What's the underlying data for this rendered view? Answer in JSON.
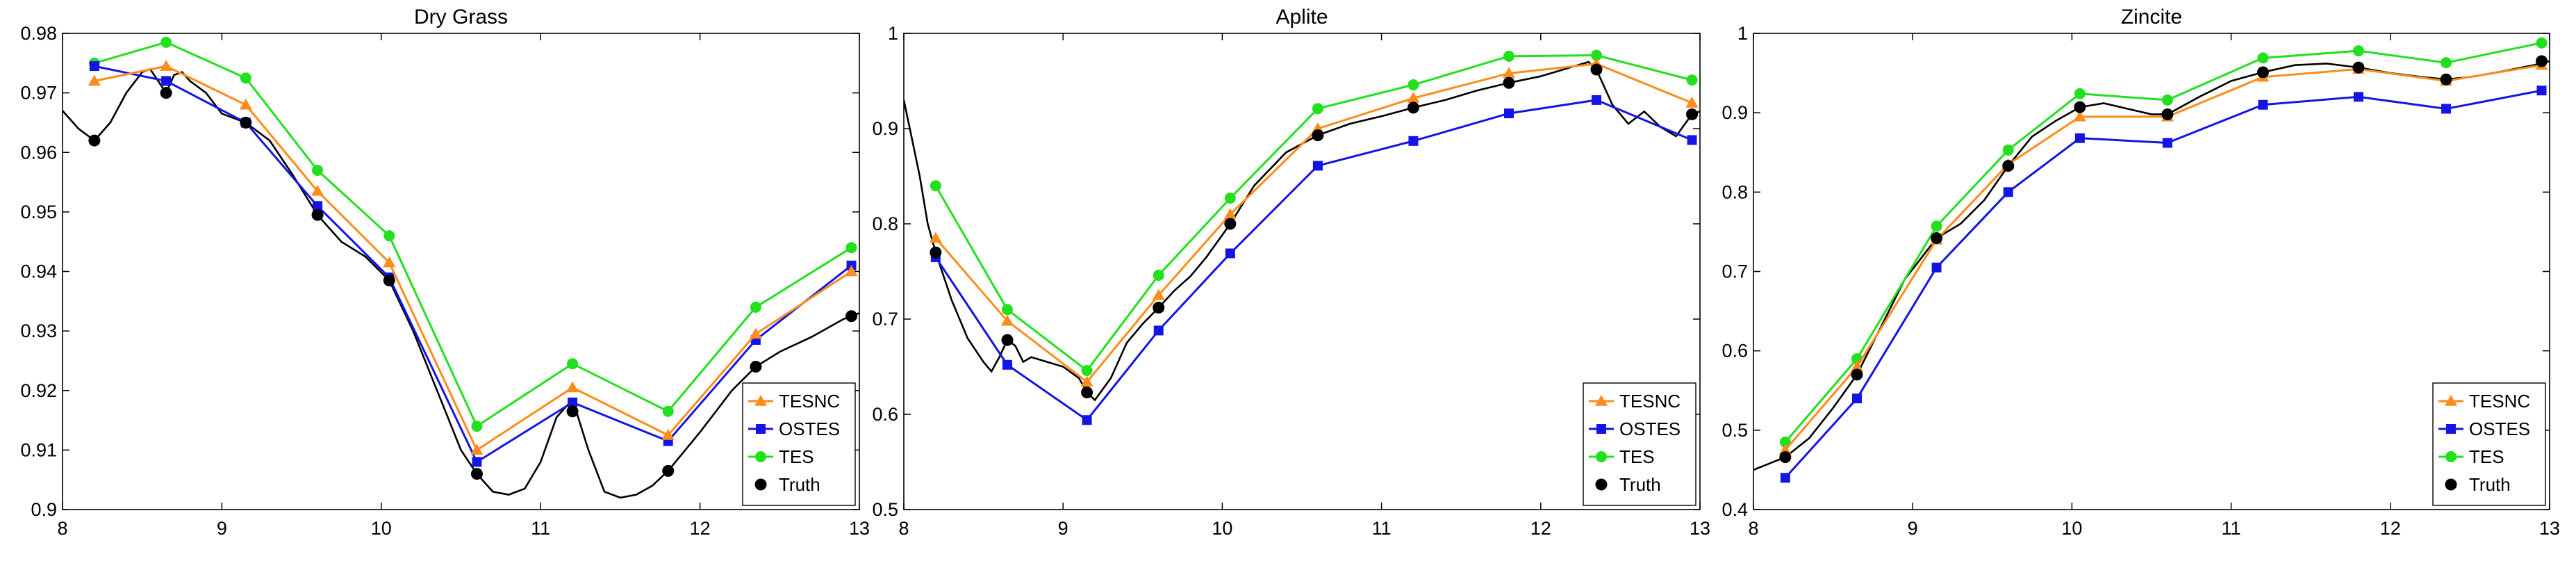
{
  "colors": {
    "TESNC": "#ff8c1a",
    "OSTES": "#1414e6",
    "TES": "#22e01e",
    "Truth": "#000000",
    "axes": "#000000",
    "background": "#ffffff"
  },
  "chart_data": [
    {
      "type": "line",
      "title": "Dry Grass",
      "xlabel": "",
      "ylabel": "",
      "xlim": [
        8,
        13
      ],
      "ylim": [
        0.9,
        0.98
      ],
      "xticks": [
        8,
        9,
        10,
        11,
        12,
        13
      ],
      "yticks": [
        0.9,
        0.91,
        0.92,
        0.93,
        0.94,
        0.95,
        0.96,
        0.97,
        0.98
      ],
      "x_tick_labels": [
        "8",
        "9",
        "10",
        "11",
        "12",
        "13"
      ],
      "y_tick_labels": [
        "0.9",
        "0.91",
        "0.92",
        "0.93",
        "0.94",
        "0.95",
        "0.96",
        "0.97",
        "0.98"
      ],
      "legend_position": "bottom-right",
      "grid": false,
      "x": [
        8.2,
        8.65,
        9.15,
        9.6,
        10.05,
        10.6,
        11.2,
        11.8,
        12.35,
        12.95
      ],
      "series": [
        {
          "name": "TESNC",
          "marker": "triangle",
          "values": [
            0.972,
            0.9745,
            0.968,
            0.9535,
            0.9415,
            0.91,
            0.9205,
            0.9125,
            0.9295,
            0.94
          ]
        },
        {
          "name": "OSTES",
          "marker": "square",
          "values": [
            0.9745,
            0.972,
            0.965,
            0.951,
            0.939,
            0.908,
            0.918,
            0.9115,
            0.9285,
            0.941
          ]
        },
        {
          "name": "TES",
          "marker": "circle",
          "values": [
            0.975,
            0.9785,
            0.9725,
            0.957,
            0.946,
            0.914,
            0.9245,
            0.9165,
            0.934,
            0.944
          ]
        },
        {
          "name": "Truth",
          "marker": "dot",
          "values": [
            0.962,
            0.97,
            0.965,
            0.9495,
            0.9385,
            0.906,
            0.9165,
            0.9065,
            0.924,
            0.9325
          ]
        }
      ],
      "truth_curve": {
        "x": [
          8.0,
          8.1,
          8.2,
          8.3,
          8.4,
          8.5,
          8.55,
          8.6,
          8.65,
          8.7,
          8.75,
          8.8,
          8.9,
          9.0,
          9.15,
          9.3,
          9.45,
          9.6,
          9.75,
          9.9,
          10.05,
          10.2,
          10.35,
          10.5,
          10.6,
          10.7,
          10.8,
          10.9,
          11.0,
          11.1,
          11.2,
          11.3,
          11.4,
          11.5,
          11.6,
          11.7,
          11.8,
          12.0,
          12.2,
          12.35,
          12.5,
          12.7,
          12.9,
          13.0
        ],
        "y": [
          0.967,
          0.964,
          0.962,
          0.965,
          0.97,
          0.9735,
          0.974,
          0.972,
          0.97,
          0.973,
          0.9735,
          0.972,
          0.97,
          0.9665,
          0.965,
          0.962,
          0.956,
          0.9495,
          0.945,
          0.9425,
          0.9385,
          0.93,
          0.92,
          0.91,
          0.906,
          0.903,
          0.9025,
          0.9035,
          0.908,
          0.9155,
          0.9185,
          0.91,
          0.903,
          0.902,
          0.9025,
          0.904,
          0.9065,
          0.913,
          0.92,
          0.924,
          0.9265,
          0.929,
          0.932,
          0.933
        ]
      }
    },
    {
      "type": "line",
      "title": "Aplite",
      "xlabel": "",
      "ylabel": "",
      "xlim": [
        8,
        13
      ],
      "ylim": [
        0.5,
        1.0
      ],
      "xticks": [
        8,
        9,
        10,
        11,
        12,
        13
      ],
      "yticks": [
        0.5,
        0.6,
        0.7,
        0.8,
        0.9,
        1.0
      ],
      "x_tick_labels": [
        "8",
        "9",
        "10",
        "11",
        "12",
        "13"
      ],
      "y_tick_labels": [
        "0.5",
        "0.6",
        "0.7",
        "0.8",
        "0.9",
        "1"
      ],
      "legend_position": "bottom-right",
      "grid": false,
      "x": [
        8.2,
        8.65,
        9.15,
        9.6,
        10.05,
        10.6,
        11.2,
        11.8,
        12.35,
        12.95
      ],
      "series": [
        {
          "name": "TESNC",
          "marker": "triangle",
          "values": [
            0.785,
            0.698,
            0.634,
            0.725,
            0.81,
            0.9,
            0.932,
            0.958,
            0.968,
            0.927
          ]
        },
        {
          "name": "OSTES",
          "marker": "square",
          "values": [
            0.765,
            0.652,
            0.594,
            0.688,
            0.769,
            0.861,
            0.887,
            0.916,
            0.93,
            0.888
          ]
        },
        {
          "name": "TES",
          "marker": "circle",
          "values": [
            0.84,
            0.71,
            0.646,
            0.746,
            0.827,
            0.921,
            0.946,
            0.976,
            0.977,
            0.951
          ]
        },
        {
          "name": "Truth",
          "marker": "dot",
          "values": [
            0.77,
            0.678,
            0.623,
            0.712,
            0.8,
            0.893,
            0.922,
            0.948,
            0.962,
            0.915
          ]
        }
      ],
      "truth_curve": {
        "x": [
          8.0,
          8.05,
          8.1,
          8.15,
          8.2,
          8.3,
          8.4,
          8.5,
          8.55,
          8.6,
          8.65,
          8.7,
          8.75,
          8.8,
          8.9,
          9.0,
          9.1,
          9.15,
          9.2,
          9.3,
          9.4,
          9.5,
          9.6,
          9.7,
          9.8,
          9.9,
          10.05,
          10.2,
          10.4,
          10.6,
          10.8,
          11.0,
          11.2,
          11.4,
          11.6,
          11.8,
          12.0,
          12.2,
          12.3,
          12.35,
          12.45,
          12.55,
          12.65,
          12.75,
          12.85,
          12.95,
          13.0
        ],
        "y": [
          0.93,
          0.89,
          0.85,
          0.8,
          0.77,
          0.72,
          0.68,
          0.655,
          0.645,
          0.66,
          0.678,
          0.672,
          0.655,
          0.66,
          0.655,
          0.65,
          0.638,
          0.623,
          0.615,
          0.638,
          0.675,
          0.695,
          0.712,
          0.73,
          0.745,
          0.765,
          0.8,
          0.84,
          0.875,
          0.893,
          0.905,
          0.913,
          0.922,
          0.93,
          0.94,
          0.948,
          0.955,
          0.965,
          0.97,
          0.962,
          0.925,
          0.905,
          0.918,
          0.902,
          0.892,
          0.915,
          0.918
        ]
      }
    },
    {
      "type": "line",
      "title": "Zincite",
      "xlabel": "",
      "ylabel": "",
      "xlim": [
        8,
        13
      ],
      "ylim": [
        0.4,
        1.0
      ],
      "xticks": [
        8,
        9,
        10,
        11,
        12,
        13
      ],
      "yticks": [
        0.4,
        0.5,
        0.6,
        0.7,
        0.8,
        0.9,
        1.0
      ],
      "x_tick_labels": [
        "8",
        "9",
        "10",
        "11",
        "12",
        "13"
      ],
      "y_tick_labels": [
        "0.4",
        "0.5",
        "0.6",
        "0.7",
        "0.8",
        "0.9",
        "1"
      ],
      "legend_position": "bottom-right",
      "grid": false,
      "x": [
        8.2,
        8.65,
        9.15,
        9.6,
        10.05,
        10.6,
        11.2,
        11.8,
        12.35,
        12.95
      ],
      "series": [
        {
          "name": "TESNC",
          "marker": "triangle",
          "values": [
            0.475,
            0.58,
            0.74,
            0.835,
            0.895,
            0.895,
            0.945,
            0.955,
            0.94,
            0.96
          ]
        },
        {
          "name": "OSTES",
          "marker": "square",
          "values": [
            0.44,
            0.54,
            0.705,
            0.8,
            0.868,
            0.862,
            0.91,
            0.92,
            0.905,
            0.928
          ]
        },
        {
          "name": "TES",
          "marker": "circle",
          "values": [
            0.485,
            0.59,
            0.757,
            0.853,
            0.924,
            0.916,
            0.969,
            0.978,
            0.963,
            0.988
          ]
        },
        {
          "name": "Truth",
          "marker": "dot",
          "values": [
            0.466,
            0.57,
            0.742,
            0.833,
            0.907,
            0.898,
            0.951,
            0.957,
            0.942,
            0.965
          ]
        }
      ],
      "truth_curve": {
        "x": [
          8.0,
          8.1,
          8.2,
          8.35,
          8.5,
          8.65,
          8.8,
          8.95,
          9.15,
          9.3,
          9.45,
          9.6,
          9.75,
          9.9,
          10.05,
          10.2,
          10.35,
          10.5,
          10.6,
          10.8,
          11.0,
          11.2,
          11.4,
          11.6,
          11.8,
          12.0,
          12.2,
          12.35,
          12.5,
          12.7,
          12.9,
          13.0
        ],
        "y": [
          0.45,
          0.458,
          0.466,
          0.49,
          0.528,
          0.57,
          0.63,
          0.69,
          0.742,
          0.76,
          0.79,
          0.833,
          0.87,
          0.89,
          0.907,
          0.912,
          0.905,
          0.898,
          0.898,
          0.92,
          0.94,
          0.951,
          0.96,
          0.962,
          0.957,
          0.95,
          0.945,
          0.942,
          0.945,
          0.952,
          0.96,
          0.965
        ]
      }
    }
  ]
}
